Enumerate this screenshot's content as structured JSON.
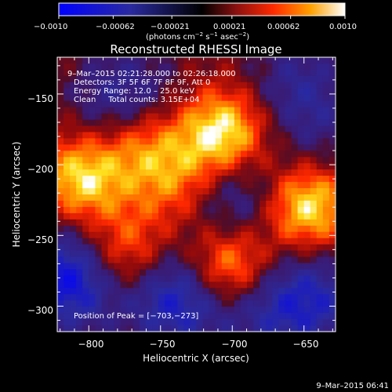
{
  "colorbar": {
    "ticks": [
      "−0.0010",
      "−0.00062",
      "−0.00021",
      "0.00021",
      "0.00062",
      "0.0010"
    ],
    "units_pre": "(photons cm",
    "units_sup1": "−2",
    "units_mid": " s",
    "units_sup2": "−1",
    "units_mid2": " asec",
    "units_sup3": "−2",
    "units_post": ")",
    "range": [
      -0.001,
      0.001
    ]
  },
  "annotations": {
    "time_range": "9–Mar–2015 02:21:28.000 to 02:26:18.000",
    "detectors": "Detectors: 3F 5F 6F 7F 8F 9F, Att 0",
    "energy": "Energy Range: 12.0 – 25.0 keV",
    "clean": "Clean     Total counts: 3.15E+04",
    "peak": "Position of Peak = [−703,−273]"
  },
  "footer": {
    "timestamp": "9–Mar–2015 06:41"
  },
  "chart_data": {
    "type": "heatmap",
    "title": "Reconstructed RHESSI Image",
    "xlabel": "Heliocentric X (arcsec)",
    "ylabel": "Heliocentric Y (arcsec)",
    "xlim": [
      -822,
      -628
    ],
    "ylim": [
      -318,
      -124
    ],
    "x_ticks": [
      -800,
      -750,
      -700,
      -650
    ],
    "x_tick_labels": [
      "−800",
      "−750",
      "−700",
      "−650"
    ],
    "y_ticks": [
      -300,
      -250,
      -200,
      -150
    ],
    "y_tick_labels": [
      "−300",
      "−250",
      "−200",
      "−150"
    ],
    "colormap": "rhessi-bipolar",
    "value_range": [
      -0.001,
      0.001
    ],
    "peak_position": [
      -703,
      -273
    ],
    "features": [
      {
        "x": -706,
        "y": -178,
        "value": 0.00095
      },
      {
        "x": -703,
        "y": -273,
        "value": 0.001
      },
      {
        "x": -648,
        "y": -230,
        "value": 0.0009
      },
      {
        "x": -805,
        "y": -210,
        "value": 0.0008
      },
      {
        "x": -775,
        "y": -265,
        "value": 0.0007
      },
      {
        "x": -762,
        "y": -185,
        "value": 0.0006
      },
      {
        "x": -737,
        "y": -215,
        "value": 0.0005
      },
      {
        "x": -700,
        "y": -225,
        "value": -0.0006
      },
      {
        "x": -812,
        "y": -280,
        "value": -0.001
      },
      {
        "x": -738,
        "y": -292,
        "value": -0.0009
      },
      {
        "x": -680,
        "y": -300,
        "value": -0.0005
      },
      {
        "x": -642,
        "y": -295,
        "value": -0.0006
      },
      {
        "x": -775,
        "y": -155,
        "value": -0.0006
      },
      {
        "x": -655,
        "y": -140,
        "value": -0.0004
      },
      {
        "x": -640,
        "y": -175,
        "value": -0.0003
      }
    ]
  }
}
